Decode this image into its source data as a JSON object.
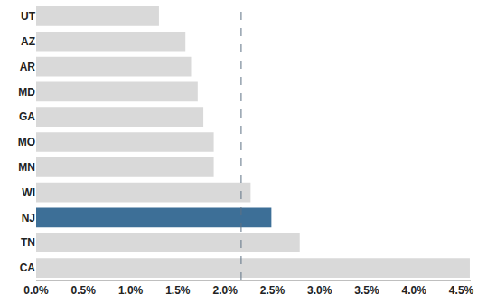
{
  "chart_data": {
    "type": "bar",
    "orientation": "horizontal",
    "categories": [
      "UT",
      "AZ",
      "AR",
      "MD",
      "GA",
      "MO",
      "MN",
      "WI",
      "NJ",
      "TN",
      "CA"
    ],
    "values": [
      1.3,
      1.58,
      1.64,
      1.71,
      1.77,
      1.88,
      1.88,
      2.27,
      2.49,
      2.79,
      4.59
    ],
    "colors": [
      "#d9d9d9",
      "#d9d9d9",
      "#d9d9d9",
      "#d9d9d9",
      "#d9d9d9",
      "#d9d9d9",
      "#d9d9d9",
      "#d9d9d9",
      "#3d6f97",
      "#d9d9d9",
      "#d9d9d9"
    ],
    "reference_line": 2.17,
    "xlim": [
      0,
      4.6
    ],
    "xticks": [
      {
        "value": 0,
        "label": "0.0%"
      },
      {
        "value": 0.5,
        "label": "0.5%"
      },
      {
        "value": 1,
        "label": "1.0%"
      },
      {
        "value": 1.5,
        "label": "1.5%"
      },
      {
        "value": 2,
        "label": "2.0%"
      },
      {
        "value": 2.5,
        "label": "2.5%"
      },
      {
        "value": 3,
        "label": "3.0%"
      },
      {
        "value": 3.5,
        "label": "3.5%"
      },
      {
        "value": 4,
        "label": "4.0%"
      },
      {
        "value": 4.5,
        "label": "4.5%"
      }
    ],
    "grid": false
  }
}
